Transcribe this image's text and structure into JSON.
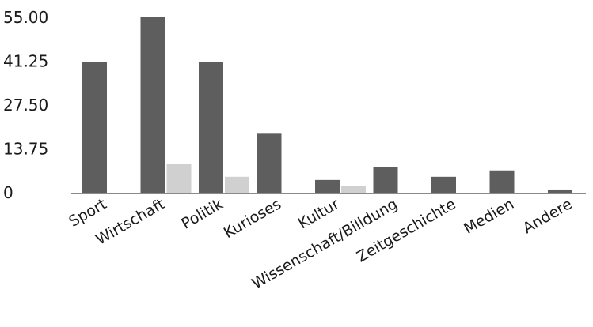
{
  "chart_data": {
    "type": "bar",
    "title": "",
    "xlabel": "",
    "ylabel": "",
    "ylim": [
      0,
      55
    ],
    "yticks": [
      "55.00",
      "41.25",
      "27.50",
      "13.75",
      "0"
    ],
    "ytick_values": [
      55,
      41.25,
      27.5,
      13.75,
      0
    ],
    "grid": false,
    "legend": "none",
    "categories": [
      "Sport",
      "Wirtschaft",
      "Politik",
      "Kurioses",
      "Kultur",
      "Wissenschaft/Billdung",
      "Zeitgeschichte",
      "Medien",
      "Andere"
    ],
    "series": [
      {
        "color": "#5e5e5e",
        "values": [
          41,
          55,
          41,
          18.5,
          4,
          8,
          5,
          7,
          1
        ]
      },
      {
        "color": "#d0d0d0",
        "values": [
          0,
          9,
          5,
          0,
          2,
          0,
          0,
          0,
          0
        ]
      }
    ]
  }
}
